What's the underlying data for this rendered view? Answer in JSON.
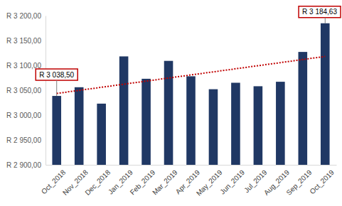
{
  "chart_data": {
    "type": "bar",
    "categories": [
      "Oct_2018",
      "Nov_2018",
      "Dec_2018",
      "Jan_2019",
      "Feb_2019",
      "Mar_2019",
      "Apr_2019",
      "May_2019",
      "Jun_2019",
      "Jul_2019",
      "Aug_2019",
      "Sep_2019",
      "Oct_2019"
    ],
    "series": [
      {
        "type": "bar",
        "color": "#203864",
        "values": [
          3038.5,
          3056,
          3023,
          3118,
          3073,
          3109,
          3078,
          3052,
          3065,
          3058,
          3067,
          3127,
          3184.63
        ]
      },
      {
        "type": "line",
        "line_style": "dotted",
        "color": "#c00000",
        "values": [
          3043.5,
          3049.7,
          3055.9,
          3062.1,
          3068.3,
          3074.5,
          3080.7,
          3086.9,
          3093.1,
          3099.3,
          3105.5,
          3111.7,
          3117.9
        ]
      }
    ],
    "ylim": [
      2900,
      3200
    ],
    "yticks": [
      {
        "value": 2900,
        "label": "R 2 900,00"
      },
      {
        "value": 2950,
        "label": "R 2 950,00"
      },
      {
        "value": 3000,
        "label": "R 3 000,00"
      },
      {
        "value": 3050,
        "label": "R 3 050,00"
      },
      {
        "value": 3100,
        "label": "R 3 100,00"
      },
      {
        "value": 3150,
        "label": "R 3 150,00"
      },
      {
        "value": 3200,
        "label": "R 3 200,00"
      }
    ],
    "grid": false,
    "annotations": [
      {
        "text": "R 3 038,50",
        "x": "Oct_2018",
        "y": 3038.5
      },
      {
        "text": "R 3 184,63",
        "x": "Oct_2019",
        "y": 3184.63
      }
    ]
  }
}
